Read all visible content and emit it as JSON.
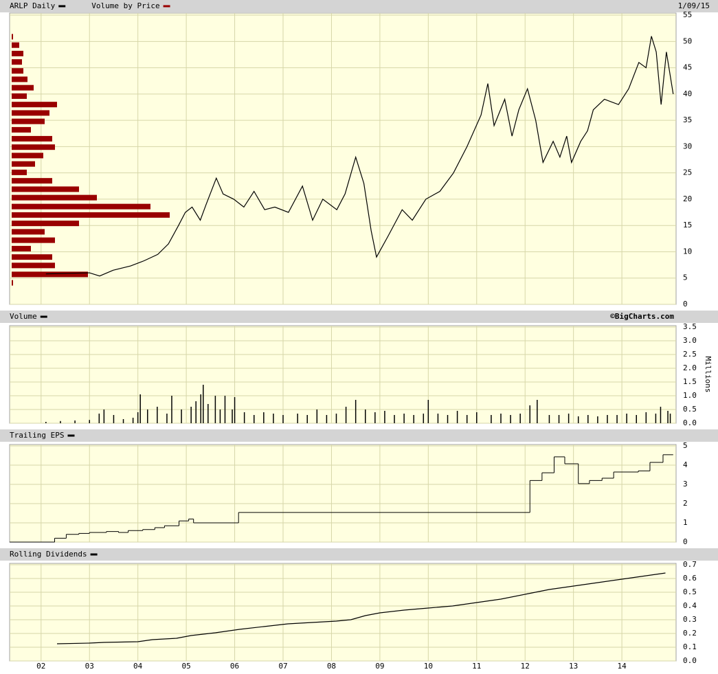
{
  "chart_data": [
    {
      "type": "line",
      "date": "1/09/15",
      "xlim": [
        2001.35,
        2015.12
      ],
      "ylim": [
        0,
        55.4
      ],
      "yticks": [
        0,
        5,
        10,
        15,
        20,
        25,
        30,
        35,
        40,
        45,
        50,
        55
      ],
      "grid": true,
      "x": [
        2002.1,
        2002.57,
        2003.0,
        2003.21,
        2003.49,
        2003.85,
        2004.13,
        2004.41,
        2004.63,
        2004.84,
        2004.98,
        2005.12,
        2005.29,
        2005.41,
        2005.62,
        2005.76,
        2005.98,
        2006.19,
        2006.4,
        2006.62,
        2006.83,
        2007.11,
        2007.4,
        2007.61,
        2007.82,
        2008.11,
        2008.28,
        2008.5,
        2008.67,
        2008.82,
        2008.93,
        2009.17,
        2009.46,
        2009.67,
        2009.95,
        2010.24,
        2010.52,
        2010.8,
        2011.09,
        2011.23,
        2011.36,
        2011.58,
        2011.73,
        2011.87,
        2012.05,
        2012.22,
        2012.37,
        2012.58,
        2012.72,
        2012.86,
        2012.96,
        2013.15,
        2013.29,
        2013.41,
        2013.64,
        2013.93,
        2014.14,
        2014.35,
        2014.5,
        2014.61,
        2014.71,
        2014.81,
        2014.92,
        2015.06
      ],
      "series": [
        {
          "name": "ARLP Daily",
          "color": "#000000",
          "values": [
            5.8,
            5.9,
            6.0,
            5.4,
            6.5,
            7.3,
            8.3,
            9.5,
            11.5,
            15,
            17.5,
            18.5,
            16,
            19,
            24,
            21,
            20,
            18.5,
            21.5,
            18,
            18.5,
            17.5,
            22.5,
            16,
            20,
            18,
            21,
            28,
            23,
            14,
            9,
            13,
            18,
            16,
            20,
            21.5,
            25,
            30,
            36,
            42,
            34,
            39,
            32,
            37,
            41,
            35,
            27,
            31,
            28,
            32,
            27,
            31,
            33,
            37,
            39,
            38,
            41,
            46,
            45,
            51,
            48,
            38,
            48,
            40
          ]
        }
      ],
      "volume_by_price": {
        "name": "Volume by Price",
        "color": "#990000",
        "prices": [
          50.9,
          49.3,
          47.7,
          46.1,
          44.4,
          42.8,
          41.2,
          39.6,
          38.0,
          36.4,
          34.8,
          33.2,
          31.5,
          29.9,
          28.3,
          26.7,
          25.1,
          23.5,
          21.9,
          20.3,
          18.6,
          17.0,
          15.4,
          13.8,
          12.2,
          10.6,
          9.0,
          7.4,
          5.7,
          4.1
        ],
        "values": [
          2,
          11,
          17,
          15,
          17,
          23,
          32,
          22,
          66,
          55,
          48,
          28,
          59,
          63,
          46,
          34,
          22,
          59,
          98,
          124,
          202,
          230,
          98,
          48,
          63,
          28,
          59,
          63,
          111,
          2
        ]
      }
    },
    {
      "type": "bar",
      "credit": "©BigCharts.com",
      "ylabel": "Millions",
      "xlim": [
        2001.35,
        2015.12
      ],
      "ylim": [
        0,
        3.55
      ],
      "yticks": [
        {
          "value": 0,
          "label": "0.0"
        },
        0.5,
        {
          "value": 1,
          "label": "1.0"
        },
        1.5,
        {
          "value": 2,
          "label": "2.0"
        },
        2.5,
        {
          "value": 3,
          "label": "3.0"
        },
        3.5
      ],
      "grid": true,
      "x": [
        2002.1,
        2002.4,
        2002.7,
        2003.0,
        2003.2,
        2003.3,
        2003.5,
        2003.7,
        2003.9,
        2004.0,
        2004.05,
        2004.2,
        2004.4,
        2004.6,
        2004.7,
        2004.9,
        2005.1,
        2005.2,
        2005.3,
        2005.35,
        2005.45,
        2005.6,
        2005.7,
        2005.8,
        2005.95,
        2006.0,
        2006.2,
        2006.4,
        2006.6,
        2006.8,
        2007.0,
        2007.3,
        2007.5,
        2007.7,
        2007.9,
        2008.1,
        2008.3,
        2008.5,
        2008.7,
        2008.9,
        2009.1,
        2009.3,
        2009.5,
        2009.7,
        2009.9,
        2010.0,
        2010.2,
        2010.4,
        2010.6,
        2010.8,
        2011.0,
        2011.3,
        2011.5,
        2011.7,
        2011.9,
        2012.1,
        2012.25,
        2012.5,
        2012.7,
        2012.9,
        2013.1,
        2013.3,
        2013.5,
        2013.7,
        2013.9,
        2014.1,
        2014.3,
        2014.5,
        2014.7,
        2014.8,
        2014.95,
        2015.0
      ],
      "series": [
        {
          "name": "Volume",
          "color": "#000000",
          "values": [
            0.05,
            0.08,
            0.1,
            0.12,
            0.35,
            0.5,
            0.3,
            0.15,
            0.2,
            0.4,
            1.05,
            0.5,
            0.6,
            0.35,
            1.0,
            0.5,
            0.6,
            0.8,
            1.05,
            1.4,
            0.7,
            1.0,
            0.5,
            1.0,
            0.5,
            0.95,
            0.4,
            0.3,
            0.4,
            0.35,
            0.3,
            0.35,
            0.3,
            0.5,
            0.3,
            0.35,
            0.6,
            0.85,
            0.5,
            0.4,
            0.45,
            0.3,
            0.35,
            0.3,
            0.35,
            0.85,
            0.35,
            0.3,
            0.45,
            0.3,
            0.4,
            0.3,
            0.35,
            0.3,
            0.35,
            0.65,
            0.85,
            0.3,
            0.3,
            0.35,
            0.25,
            0.3,
            0.25,
            0.3,
            0.3,
            0.35,
            0.3,
            0.4,
            0.35,
            0.6,
            0.45,
            0.35
          ]
        }
      ]
    },
    {
      "type": "step",
      "xlim": [
        2001.35,
        2015.12
      ],
      "ylim": [
        0,
        5.07
      ],
      "yticks": [
        0,
        1,
        2,
        3,
        4,
        5
      ],
      "grid": true,
      "x": [
        2001.35,
        2002.28,
        2002.52,
        2002.78,
        2003.0,
        2003.35,
        2003.6,
        2003.8,
        2004.1,
        2004.35,
        2004.55,
        2004.85,
        2005.05,
        2005.15,
        2006.08,
        2012.1,
        2012.35,
        2012.6,
        2012.82,
        2013.1,
        2013.33,
        2013.59,
        2013.83,
        2014.34,
        2014.58,
        2014.85,
        2015.06
      ],
      "series": [
        {
          "name": "Trailing EPS",
          "color": "#000000",
          "values": [
            0,
            0.2,
            0.4,
            0.45,
            0.5,
            0.55,
            0.5,
            0.6,
            0.65,
            0.75,
            0.85,
            1.1,
            1.2,
            1.0,
            1.54,
            3.2,
            3.6,
            4.43,
            4.07,
            3.04,
            3.2,
            3.32,
            3.64,
            3.7,
            4.14,
            4.54,
            4.54
          ]
        }
      ]
    },
    {
      "type": "line",
      "xlim": [
        2001.35,
        2015.12
      ],
      "ylim": [
        0,
        0.71
      ],
      "yticks": [
        {
          "value": 0,
          "label": "0.0"
        },
        0.1,
        0.2,
        0.3,
        0.4,
        0.5,
        0.6,
        0.7
      ],
      "grid": true,
      "xticks": [
        {
          "value": 2002,
          "label": "02"
        },
        {
          "value": 2003,
          "label": "03"
        },
        {
          "value": 2004,
          "label": "04"
        },
        {
          "value": 2005,
          "label": "05"
        },
        {
          "value": 2006,
          "label": "06"
        },
        {
          "value": 2007,
          "label": "07"
        },
        {
          "value": 2008,
          "label": "08"
        },
        {
          "value": 2009,
          "label": "09"
        },
        {
          "value": 2010,
          "label": "10"
        },
        {
          "value": 2011,
          "label": "11"
        },
        {
          "value": 2012,
          "label": "12"
        },
        {
          "value": 2013,
          "label": "13"
        },
        {
          "value": 2014,
          "label": "14"
        }
      ],
      "x": [
        2002.33,
        2003.0,
        2003.3,
        2004.0,
        2004.3,
        2004.8,
        2005.1,
        2005.6,
        2006.1,
        2006.6,
        2007.1,
        2007.6,
        2008.1,
        2008.4,
        2008.7,
        2009.0,
        2009.5,
        2010.0,
        2010.5,
        2011.0,
        2011.5,
        2012.0,
        2012.5,
        2013.0,
        2013.5,
        2014.0,
        2014.5,
        2014.9
      ],
      "series": [
        {
          "name": "Rolling Dividends",
          "color": "#000000",
          "values": [
            0.125,
            0.13,
            0.135,
            0.14,
            0.155,
            0.165,
            0.185,
            0.205,
            0.23,
            0.25,
            0.27,
            0.28,
            0.29,
            0.3,
            0.33,
            0.35,
            0.37,
            0.385,
            0.4,
            0.425,
            0.45,
            0.485,
            0.52,
            0.545,
            0.57,
            0.595,
            0.62,
            0.64
          ]
        }
      ]
    }
  ]
}
